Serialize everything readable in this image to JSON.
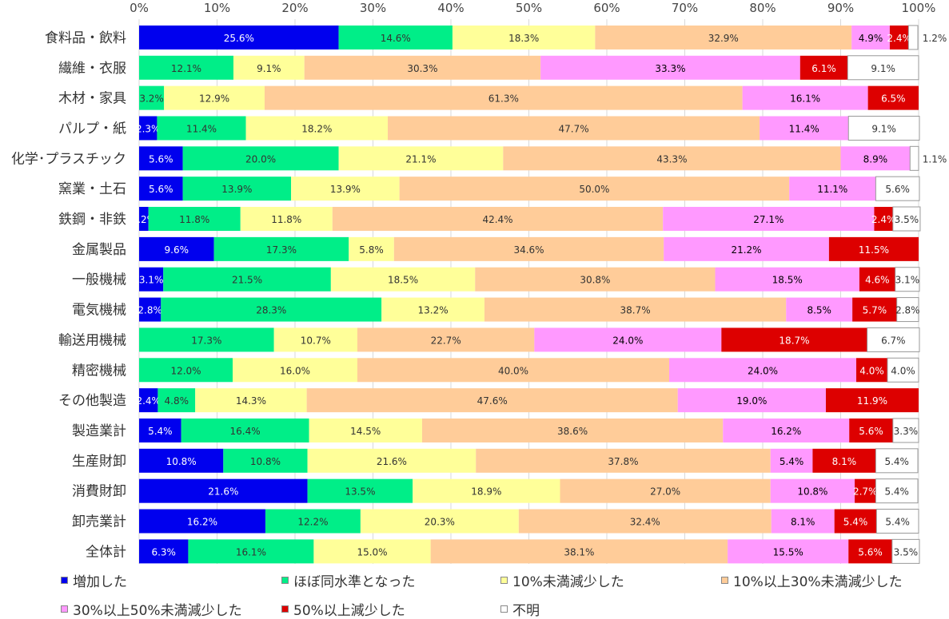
{
  "chart_data": {
    "type": "bar",
    "orientation": "horizontal",
    "stacked": "percent",
    "xlim": [
      0,
      100
    ],
    "x_ticks": [
      "0%",
      "10%",
      "20%",
      "30%",
      "40%",
      "50%",
      "60%",
      "70%",
      "80%",
      "90%",
      "100%"
    ],
    "grid": true,
    "legend_position": "bottom",
    "categories": [
      "食料品・飲料",
      "繊維・衣服",
      "木材・家具",
      "パルプ・紙",
      "化学･プラスチック",
      "窯業・土石",
      "鉄鋼・非鉄",
      "金属製品",
      "一般機械",
      "電気機械",
      "輸送用機械",
      "精密機械",
      "その他製造",
      "製造業計",
      "生産財卸",
      "消費財卸",
      "卸売業計",
      "全体計"
    ],
    "series": [
      {
        "name": "増加した",
        "color": "#0000ee",
        "label_color": "#ffffff",
        "values": [
          25.6,
          0,
          0,
          2.3,
          5.6,
          5.6,
          1.2,
          9.6,
          3.1,
          2.8,
          0,
          0,
          2.4,
          5.4,
          10.8,
          21.6,
          16.2,
          6.3
        ]
      },
      {
        "name": "ほぼ同水準となった",
        "color": "#00ee88",
        "label_color": "#333333",
        "values": [
          14.6,
          12.1,
          3.2,
          11.4,
          20.0,
          13.9,
          11.8,
          17.3,
          21.5,
          28.3,
          17.3,
          12.0,
          4.8,
          16.4,
          10.8,
          13.5,
          12.2,
          16.1
        ]
      },
      {
        "name": "10%未満減少した",
        "color": "#ffff99",
        "label_color": "#333333",
        "values": [
          18.3,
          9.1,
          12.9,
          18.2,
          21.1,
          13.9,
          11.8,
          5.8,
          18.5,
          13.2,
          10.7,
          16.0,
          14.3,
          14.5,
          21.6,
          18.9,
          20.3,
          15.0
        ]
      },
      {
        "name": "10%以上30%未満減少した",
        "color": "#ffcc99",
        "label_color": "#333333",
        "values": [
          32.9,
          30.3,
          61.3,
          47.7,
          43.3,
          50.0,
          42.4,
          34.6,
          30.8,
          38.7,
          22.7,
          40.0,
          47.6,
          38.6,
          37.8,
          27.0,
          32.4,
          38.1
        ]
      },
      {
        "name": "30%以上50%未満減少した",
        "color": "#ff99ff",
        "label_color": "#000000",
        "values": [
          4.9,
          33.3,
          16.1,
          11.4,
          8.9,
          11.1,
          27.1,
          21.2,
          18.5,
          8.5,
          24.0,
          24.0,
          19.0,
          16.2,
          5.4,
          10.8,
          8.1,
          15.5
        ]
      },
      {
        "name": "50%以上減少した",
        "color": "#dd0000",
        "label_color": "#ffffff",
        "values": [
          2.4,
          6.1,
          6.5,
          0,
          0,
          0,
          2.4,
          11.5,
          4.6,
          5.7,
          18.7,
          4.0,
          11.9,
          5.6,
          8.1,
          2.7,
          5.4,
          5.6
        ]
      },
      {
        "name": "不明",
        "color": "#ffffff",
        "label_color": "#333333",
        "values": [
          1.2,
          9.1,
          0,
          9.1,
          1.1,
          5.6,
          3.5,
          0,
          3.1,
          2.8,
          6.7,
          4.0,
          0,
          3.3,
          5.4,
          5.4,
          5.4,
          3.5
        ]
      }
    ]
  }
}
